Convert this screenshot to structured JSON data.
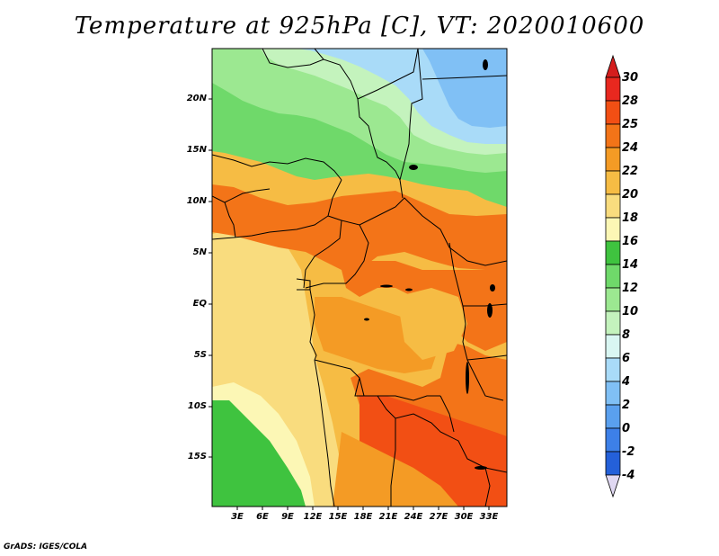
{
  "title": "Temperature at 925hPa [C], VT: 2020010600",
  "credit": "GrADS: IGES/COLA",
  "map": {
    "region": "Central Africa",
    "lon_range": [
      0,
      35
    ],
    "lat_range": [
      -20,
      25
    ],
    "lat_labels": [
      "20N",
      "15N",
      "10N",
      "5N",
      "EQ",
      "5S",
      "10S",
      "15S"
    ],
    "lon_labels": [
      "3E",
      "6E",
      "9E",
      "12E",
      "15E",
      "18E",
      "21E",
      "24E",
      "27E",
      "30E",
      "33E"
    ]
  },
  "colorbar": {
    "labels": [
      "30",
      "28",
      "25",
      "24",
      "22",
      "20",
      "18",
      "16",
      "14",
      "12",
      "10",
      "8",
      "6",
      "4",
      "2",
      "0",
      "-2",
      "-4"
    ],
    "colors": [
      "#e8281f",
      "#f24f14",
      "#f37418",
      "#f49b25",
      "#f6bc44",
      "#f9dc7e",
      "#fcf7b5",
      "#3fc33f",
      "#6fd96a",
      "#9ce891",
      "#c4f3bd",
      "#d9f6f2",
      "#a9dbf8",
      "#80c0f5",
      "#5aa0ee",
      "#3d80e8",
      "#2460d9",
      "#0a2d9e",
      "#00107a"
    ],
    "end_caps": {
      "top": "#d41d1d",
      "bottom": "#e0d8f2"
    }
  }
}
